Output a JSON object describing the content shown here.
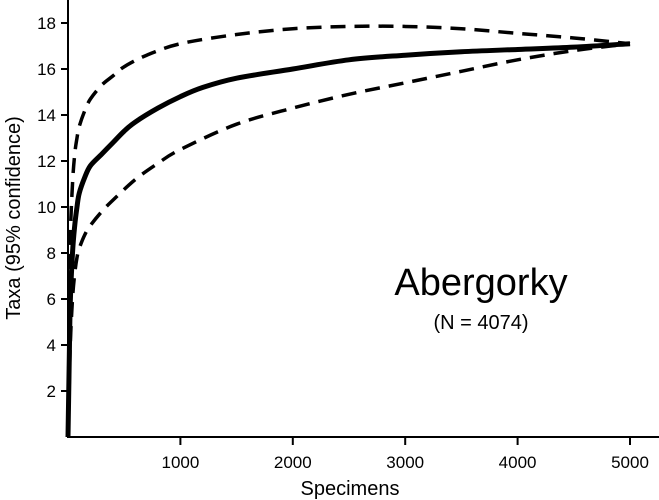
{
  "chart_data": {
    "type": "line",
    "xlabel": "Specimens",
    "ylabel": "Taxa (95% confidence)",
    "xlim": [
      0,
      5000
    ],
    "ylim": [
      0,
      19
    ],
    "xticks": [
      1000,
      2000,
      3000,
      4000,
      5000
    ],
    "yticks": [
      2,
      4,
      6,
      8,
      10,
      12,
      14,
      16,
      18
    ],
    "grid": false,
    "annotation": {
      "title": "Abergorky",
      "subtitle": "(N = 4074)"
    },
    "series": [
      {
        "style": "solid",
        "x": [
          0,
          10,
          20,
          40,
          60,
          80,
          100,
          150,
          200,
          300,
          400,
          500,
          600,
          800,
          1000,
          1200,
          1500,
          2000,
          2500,
          3000,
          3500,
          4000,
          4500,
          5000
        ],
        "y": [
          0,
          3,
          5.8,
          8,
          9.2,
          10,
          10.6,
          11.3,
          11.8,
          12.3,
          12.8,
          13.3,
          13.7,
          14.3,
          14.8,
          15.2,
          15.6,
          16.0,
          16.4,
          16.6,
          16.75,
          16.85,
          16.95,
          17.1
        ]
      },
      {
        "style": "dashed",
        "x": [
          0,
          10,
          20,
          40,
          60,
          80,
          100,
          150,
          200,
          300,
          400,
          500,
          700,
          1000,
          1500,
          2000,
          2500,
          3000,
          3500,
          4000,
          4500,
          5000
        ],
        "y": [
          0,
          4,
          8.5,
          11,
          12.3,
          13,
          13.5,
          14.2,
          14.7,
          15.3,
          15.7,
          16.1,
          16.6,
          17.1,
          17.5,
          17.75,
          17.85,
          17.85,
          17.75,
          17.55,
          17.35,
          17.1
        ]
      },
      {
        "style": "dashed",
        "x": [
          0,
          10,
          20,
          40,
          60,
          80,
          100,
          150,
          200,
          300,
          400,
          600,
          800,
          1000,
          1500,
          2000,
          2500,
          3000,
          3500,
          4000,
          4500,
          5000
        ],
        "y": [
          0,
          2,
          4,
          6,
          7.1,
          7.8,
          8.2,
          8.8,
          9.2,
          9.8,
          10.3,
          11.2,
          11.9,
          12.5,
          13.6,
          14.3,
          14.9,
          15.4,
          15.9,
          16.4,
          16.8,
          17.1
        ]
      }
    ]
  }
}
